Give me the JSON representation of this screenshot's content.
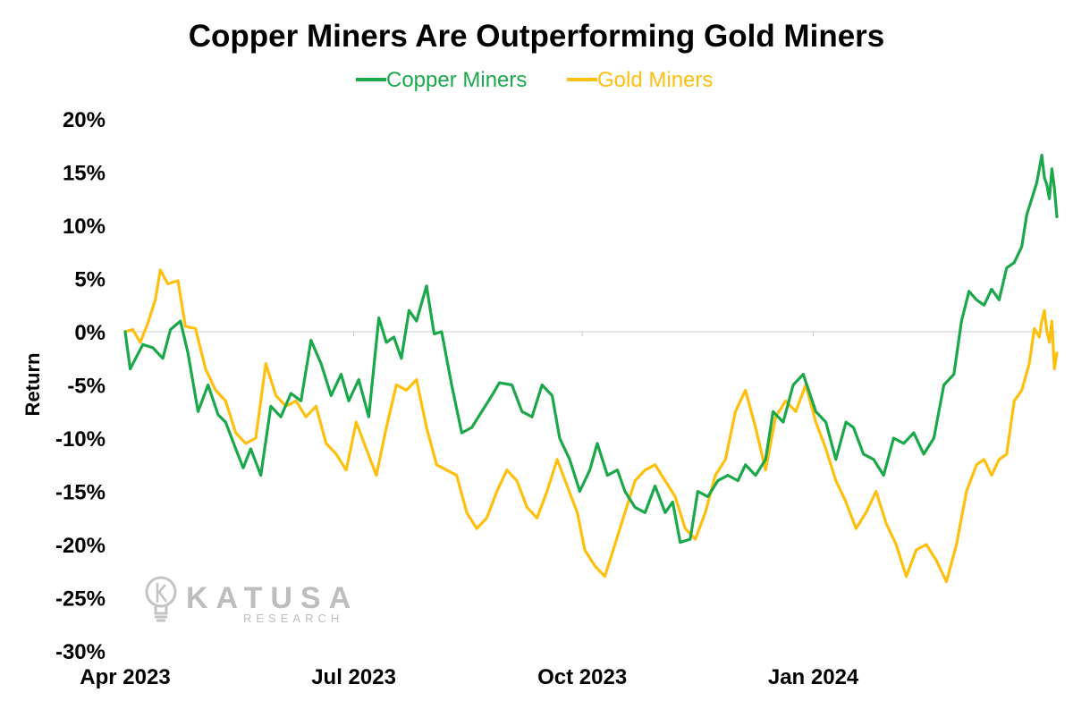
{
  "chart_data": {
    "type": "line",
    "title": "Copper Miners Are Outperforming Gold Miners",
    "ylabel": "Return",
    "xlabel": "",
    "ylim": [
      -30,
      20
    ],
    "yticks": [
      20,
      15,
      10,
      5,
      0,
      -5,
      -10,
      -15,
      -20,
      -25,
      -30
    ],
    "ytick_labels": [
      "20%",
      "15%",
      "10%",
      "5%",
      "0%",
      "-5%",
      "-10%",
      "-15%",
      "-20%",
      "-25%",
      "-30%"
    ],
    "x_ticks": [
      {
        "label": "Apr 2023",
        "date": "2023-04-03"
      },
      {
        "label": "Jul 2023",
        "date": "2023-07-03"
      },
      {
        "label": "Oct 2023",
        "date": "2023-10-02"
      },
      {
        "label": "Jan 2024",
        "date": "2024-01-02"
      }
    ],
    "xlim": [
      "2023-04-03",
      "2024-04-08"
    ],
    "legend_position": "top-center",
    "grid": false,
    "series": [
      {
        "name": "Copper Miners",
        "color": "#1aa84a",
        "points": [
          [
            "2023-04-03",
            0
          ],
          [
            "2023-04-05",
            -3.5
          ],
          [
            "2023-04-10",
            -1.2
          ],
          [
            "2023-04-14",
            -1.5
          ],
          [
            "2023-04-18",
            -2.5
          ],
          [
            "2023-04-21",
            0.2
          ],
          [
            "2023-04-25",
            1.0
          ],
          [
            "2023-04-28",
            -2.0
          ],
          [
            "2023-05-02",
            -7.5
          ],
          [
            "2023-05-06",
            -5.0
          ],
          [
            "2023-05-10",
            -7.8
          ],
          [
            "2023-05-13",
            -8.5
          ],
          [
            "2023-05-17",
            -11.0
          ],
          [
            "2023-05-20",
            -12.8
          ],
          [
            "2023-05-23",
            -11.0
          ],
          [
            "2023-05-27",
            -13.5
          ],
          [
            "2023-05-31",
            -7.0
          ],
          [
            "2023-06-04",
            -8.0
          ],
          [
            "2023-06-08",
            -5.8
          ],
          [
            "2023-06-12",
            -6.5
          ],
          [
            "2023-06-16",
            -0.8
          ],
          [
            "2023-06-20",
            -3.0
          ],
          [
            "2023-06-24",
            -6.0
          ],
          [
            "2023-06-28",
            -4.0
          ],
          [
            "2023-07-01",
            -6.5
          ],
          [
            "2023-07-05",
            -4.5
          ],
          [
            "2023-07-09",
            -8.0
          ],
          [
            "2023-07-13",
            1.3
          ],
          [
            "2023-07-16",
            -1.0
          ],
          [
            "2023-07-19",
            -0.5
          ],
          [
            "2023-07-22",
            -2.5
          ],
          [
            "2023-07-25",
            2.0
          ],
          [
            "2023-07-28",
            1.0
          ],
          [
            "2023-08-01",
            4.3
          ],
          [
            "2023-08-04",
            -0.2
          ],
          [
            "2023-08-07",
            0.0
          ],
          [
            "2023-08-11",
            -5.0
          ],
          [
            "2023-08-15",
            -9.5
          ],
          [
            "2023-08-19",
            -9.0
          ],
          [
            "2023-08-23",
            -7.5
          ],
          [
            "2023-08-27",
            -6.0
          ],
          [
            "2023-08-30",
            -4.8
          ],
          [
            "2023-09-04",
            -5.0
          ],
          [
            "2023-09-08",
            -7.5
          ],
          [
            "2023-09-12",
            -8.0
          ],
          [
            "2023-09-16",
            -5.0
          ],
          [
            "2023-09-20",
            -6.0
          ],
          [
            "2023-09-23",
            -10.0
          ],
          [
            "2023-09-27",
            -12.0
          ],
          [
            "2023-10-01",
            -15.0
          ],
          [
            "2023-10-05",
            -13.0
          ],
          [
            "2023-10-08",
            -10.5
          ],
          [
            "2023-10-12",
            -13.5
          ],
          [
            "2023-10-16",
            -13.0
          ],
          [
            "2023-10-19",
            -15.0
          ],
          [
            "2023-10-23",
            -16.5
          ],
          [
            "2023-10-27",
            -17.0
          ],
          [
            "2023-10-31",
            -14.5
          ],
          [
            "2023-11-04",
            -17.0
          ],
          [
            "2023-11-07",
            -16.0
          ],
          [
            "2023-11-10",
            -19.8
          ],
          [
            "2023-11-14",
            -19.5
          ],
          [
            "2023-11-17",
            -15.0
          ],
          [
            "2023-11-21",
            -15.5
          ],
          [
            "2023-11-25",
            -14.0
          ],
          [
            "2023-11-29",
            -13.5
          ],
          [
            "2023-12-03",
            -14.0
          ],
          [
            "2023-12-06",
            -12.5
          ],
          [
            "2023-12-10",
            -13.5
          ],
          [
            "2023-12-14",
            -12.0
          ],
          [
            "2023-12-17",
            -7.5
          ],
          [
            "2023-12-21",
            -8.5
          ],
          [
            "2023-12-25",
            -5.0
          ],
          [
            "2023-12-29",
            -4.0
          ],
          [
            "2024-01-03",
            -7.5
          ],
          [
            "2024-01-07",
            -8.5
          ],
          [
            "2024-01-11",
            -12.0
          ],
          [
            "2024-01-15",
            -8.5
          ],
          [
            "2024-01-18",
            -9.0
          ],
          [
            "2024-01-22",
            -11.5
          ],
          [
            "2024-01-26",
            -12.0
          ],
          [
            "2024-01-30",
            -13.5
          ],
          [
            "2024-02-03",
            -10.0
          ],
          [
            "2024-02-07",
            -10.5
          ],
          [
            "2024-02-11",
            -9.5
          ],
          [
            "2024-02-15",
            -11.5
          ],
          [
            "2024-02-19",
            -10.0
          ],
          [
            "2024-02-23",
            -5.0
          ],
          [
            "2024-02-27",
            -4.0
          ],
          [
            "2024-03-01",
            1.0
          ],
          [
            "2024-03-04",
            3.8
          ],
          [
            "2024-03-07",
            3.0
          ],
          [
            "2024-03-10",
            2.5
          ],
          [
            "2024-03-13",
            4.0
          ],
          [
            "2024-03-16",
            3.0
          ],
          [
            "2024-03-19",
            6.0
          ],
          [
            "2024-03-22",
            6.5
          ],
          [
            "2024-03-25",
            8.0
          ],
          [
            "2024-03-27",
            11.0
          ],
          [
            "2024-03-29",
            12.5
          ],
          [
            "2024-03-31",
            14.0
          ],
          [
            "2024-04-02",
            16.6
          ],
          [
            "2024-04-03",
            14.5
          ],
          [
            "2024-04-04",
            13.8
          ],
          [
            "2024-04-05",
            12.5
          ],
          [
            "2024-04-06",
            15.3
          ],
          [
            "2024-04-07",
            13.5
          ],
          [
            "2024-04-08",
            10.8
          ]
        ]
      },
      {
        "name": "Gold Miners",
        "color": "#ffbf0f",
        "points": [
          [
            "2023-04-03",
            0
          ],
          [
            "2023-04-06",
            0.2
          ],
          [
            "2023-04-09",
            -1.0
          ],
          [
            "2023-04-12",
            0.8
          ],
          [
            "2023-04-15",
            3.0
          ],
          [
            "2023-04-17",
            5.8
          ],
          [
            "2023-04-20",
            4.5
          ],
          [
            "2023-04-24",
            4.8
          ],
          [
            "2023-04-27",
            0.5
          ],
          [
            "2023-05-01",
            0.3
          ],
          [
            "2023-05-05",
            -3.5
          ],
          [
            "2023-05-09",
            -5.5
          ],
          [
            "2023-05-13",
            -6.5
          ],
          [
            "2023-05-17",
            -9.5
          ],
          [
            "2023-05-21",
            -10.5
          ],
          [
            "2023-05-25",
            -10.0
          ],
          [
            "2023-05-29",
            -3.0
          ],
          [
            "2023-06-02",
            -6.0
          ],
          [
            "2023-06-06",
            -7.0
          ],
          [
            "2023-06-10",
            -6.5
          ],
          [
            "2023-06-14",
            -8.0
          ],
          [
            "2023-06-18",
            -7.0
          ],
          [
            "2023-06-22",
            -10.5
          ],
          [
            "2023-06-26",
            -11.5
          ],
          [
            "2023-06-30",
            -13.0
          ],
          [
            "2023-07-04",
            -8.5
          ],
          [
            "2023-07-08",
            -11.0
          ],
          [
            "2023-07-12",
            -13.5
          ],
          [
            "2023-07-16",
            -9.0
          ],
          [
            "2023-07-20",
            -5.0
          ],
          [
            "2023-07-24",
            -5.5
          ],
          [
            "2023-07-28",
            -4.5
          ],
          [
            "2023-08-01",
            -9.0
          ],
          [
            "2023-08-05",
            -12.5
          ],
          [
            "2023-08-09",
            -13.0
          ],
          [
            "2023-08-13",
            -13.5
          ],
          [
            "2023-08-17",
            -17.0
          ],
          [
            "2023-08-21",
            -18.5
          ],
          [
            "2023-08-25",
            -17.5
          ],
          [
            "2023-08-29",
            -15.0
          ],
          [
            "2023-09-02",
            -13.0
          ],
          [
            "2023-09-06",
            -14.0
          ],
          [
            "2023-09-10",
            -16.5
          ],
          [
            "2023-09-14",
            -17.5
          ],
          [
            "2023-09-18",
            -15.0
          ],
          [
            "2023-09-22",
            -12.0
          ],
          [
            "2023-09-26",
            -14.5
          ],
          [
            "2023-09-30",
            -17.0
          ],
          [
            "2023-10-03",
            -20.5
          ],
          [
            "2023-10-07",
            -22.0
          ],
          [
            "2023-10-11",
            -23.0
          ],
          [
            "2023-10-15",
            -20.0
          ],
          [
            "2023-10-19",
            -17.0
          ],
          [
            "2023-10-23",
            -14.0
          ],
          [
            "2023-10-27",
            -13.0
          ],
          [
            "2023-10-31",
            -12.5
          ],
          [
            "2023-11-04",
            -14.0
          ],
          [
            "2023-11-08",
            -15.5
          ],
          [
            "2023-11-12",
            -18.5
          ],
          [
            "2023-11-16",
            -19.5
          ],
          [
            "2023-11-20",
            -17.0
          ],
          [
            "2023-11-24",
            -13.5
          ],
          [
            "2023-11-28",
            -12.0
          ],
          [
            "2023-12-02",
            -7.5
          ],
          [
            "2023-12-06",
            -5.5
          ],
          [
            "2023-12-10",
            -9.0
          ],
          [
            "2023-12-14",
            -13.0
          ],
          [
            "2023-12-18",
            -8.0
          ],
          [
            "2023-12-22",
            -6.5
          ],
          [
            "2023-12-26",
            -7.5
          ],
          [
            "2023-12-30",
            -5.0
          ],
          [
            "2024-01-03",
            -8.5
          ],
          [
            "2024-01-07",
            -11.0
          ],
          [
            "2024-01-11",
            -14.0
          ],
          [
            "2024-01-15",
            -16.0
          ],
          [
            "2024-01-19",
            -18.5
          ],
          [
            "2024-01-23",
            -17.0
          ],
          [
            "2024-01-27",
            -15.0
          ],
          [
            "2024-01-31",
            -18.0
          ],
          [
            "2024-02-04",
            -20.0
          ],
          [
            "2024-02-08",
            -23.0
          ],
          [
            "2024-02-12",
            -20.5
          ],
          [
            "2024-02-16",
            -20.0
          ],
          [
            "2024-02-20",
            -21.5
          ],
          [
            "2024-02-24",
            -23.5
          ],
          [
            "2024-02-28",
            -20.0
          ],
          [
            "2024-03-03",
            -15.0
          ],
          [
            "2024-03-07",
            -12.5
          ],
          [
            "2024-03-10",
            -12.0
          ],
          [
            "2024-03-13",
            -13.5
          ],
          [
            "2024-03-16",
            -12.0
          ],
          [
            "2024-03-19",
            -11.5
          ],
          [
            "2024-03-22",
            -6.5
          ],
          [
            "2024-03-25",
            -5.5
          ],
          [
            "2024-03-28",
            -3.0
          ],
          [
            "2024-03-30",
            0.3
          ],
          [
            "2024-04-01",
            -0.5
          ],
          [
            "2024-04-02",
            1.0
          ],
          [
            "2024-04-03",
            2.0
          ],
          [
            "2024-04-04",
            0.0
          ],
          [
            "2024-04-05",
            -1.0
          ],
          [
            "2024-04-06",
            1.0
          ],
          [
            "2024-04-07",
            -3.5
          ],
          [
            "2024-04-08",
            -2.0
          ]
        ]
      }
    ]
  },
  "watermark": {
    "brand": "KATUSA",
    "sub": "RESEARCH",
    "icon": "lightbulb-icon"
  }
}
